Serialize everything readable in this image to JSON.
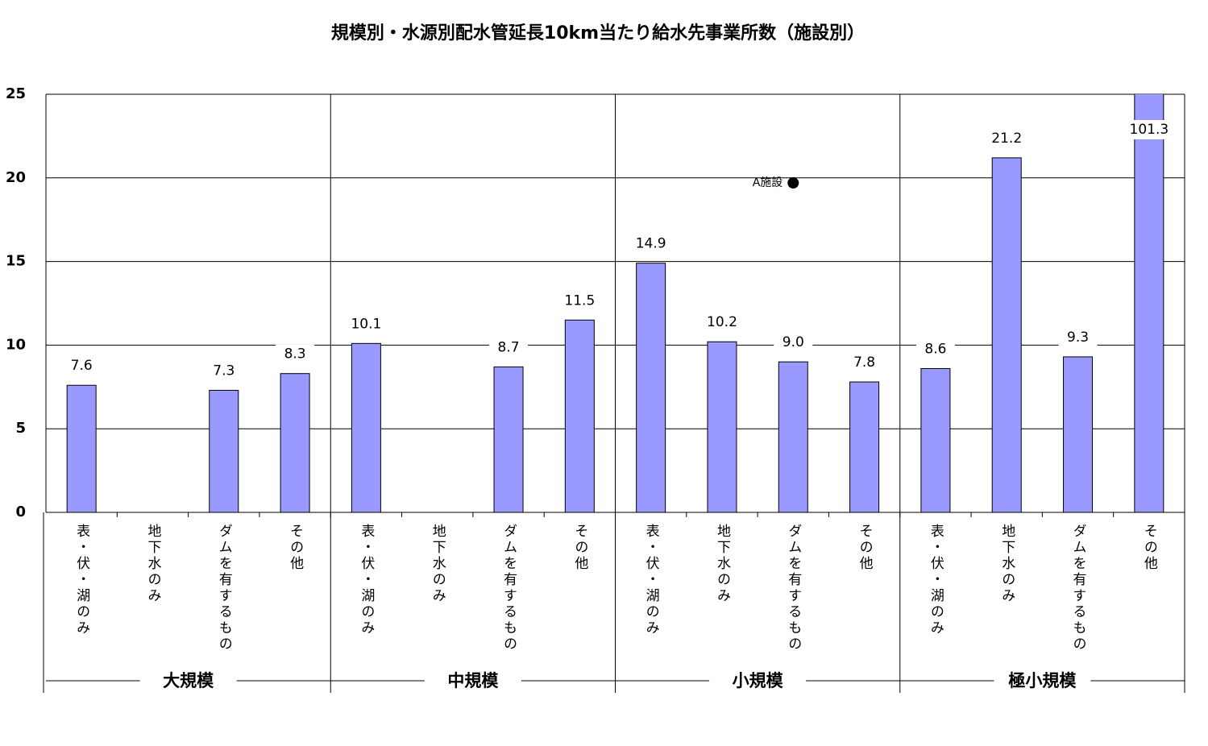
{
  "chart_data": {
    "type": "bar",
    "title": "規模別・水源別配水管延長10km当たり給水先事業所数（施設別）",
    "groups": [
      "大規模",
      "中規模",
      "小規模",
      "極小規模"
    ],
    "categories": [
      "表・伏・湖のみ",
      "地下水のみ",
      "ダムを有するもの",
      "その他",
      "表・伏・湖のみ",
      "地下水のみ",
      "ダムを有するもの",
      "その他",
      "表・伏・湖のみ",
      "地下水のみ",
      "ダムを有するもの",
      "その他",
      "表・伏・湖のみ",
      "地下水のみ",
      "ダムを有するもの",
      "その他"
    ],
    "values": [
      7.6,
      null,
      7.3,
      8.3,
      10.1,
      null,
      8.7,
      11.5,
      14.9,
      10.2,
      9.0,
      7.8,
      8.6,
      21.2,
      9.3,
      101.3
    ],
    "value_labels": [
      "7.6",
      null,
      "7.3",
      "8.3",
      "10.1",
      null,
      "8.7",
      "11.5",
      "14.9",
      "10.2",
      "9.0",
      "7.8",
      "8.6",
      "21.2",
      "9.3",
      "101.3"
    ],
    "color": "#9999ff",
    "ylim": [
      0,
      25
    ],
    "yticks": [
      0,
      5,
      10,
      15,
      20,
      25
    ],
    "grid": true,
    "annotation": {
      "label": "A施設",
      "value": 19.7
    }
  }
}
